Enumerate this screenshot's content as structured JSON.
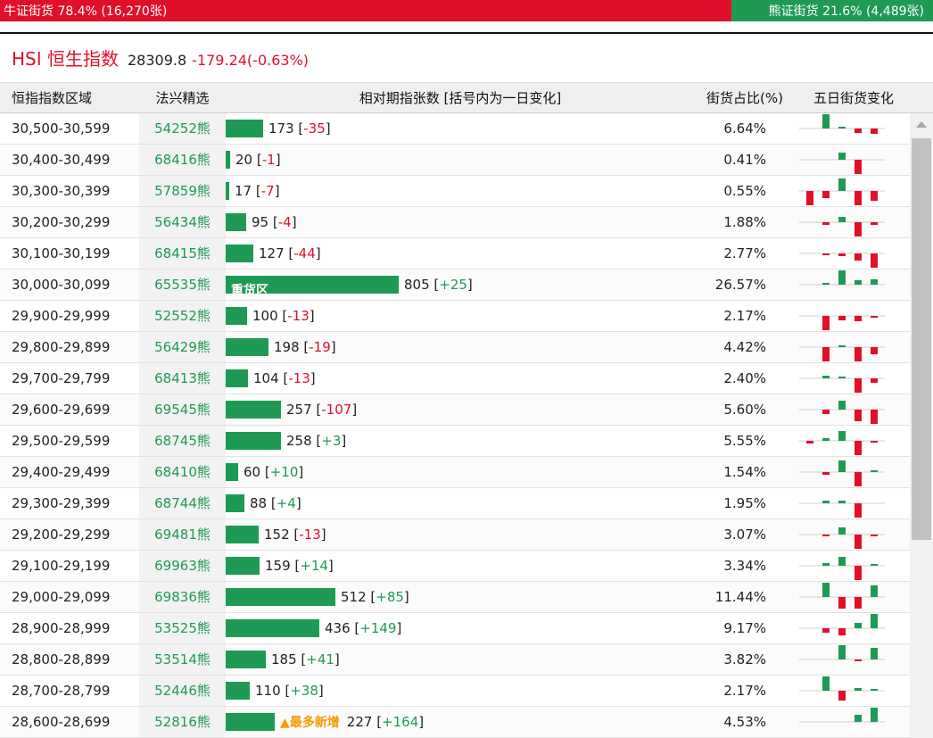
{
  "ratio": {
    "bull_label": "牛证街货 78.4% (16,270张)",
    "bull_share": 78.4,
    "bear_label": "熊证街货 21.6% (4,489张)",
    "bear_share": 21.6
  },
  "index": {
    "name": "HSI 恒生指数",
    "value": "28309.8",
    "change": "-179.24(-0.63%)"
  },
  "table": {
    "headers": {
      "range": "恒指指数区域",
      "pick": "法兴精选",
      "relative": "相对期指张数 [括号内为一日变化]",
      "share": "街货占比(%)",
      "five_day": "五日街货变化"
    },
    "max_contracts": 805,
    "rows": [
      {
        "range": "30,500-30,599",
        "pick": "54252熊",
        "contracts": 173,
        "contracts_text": "173",
        "change": "-35",
        "share": "6.64%",
        "five_day": [
          0,
          1,
          0.1,
          -0.3,
          -0.4
        ]
      },
      {
        "range": "30,400-30,499",
        "pick": "68416熊",
        "contracts": 20,
        "contracts_text": "20",
        "change": "-1",
        "share": "0.41%",
        "five_day": [
          0,
          0,
          0.5,
          -1,
          0
        ]
      },
      {
        "range": "30,300-30,399",
        "pick": "57859熊",
        "contracts": 17,
        "contracts_text": "17",
        "change": "-7",
        "share": "0.55%",
        "five_day": [
          -1,
          -0.5,
          0.9,
          -1,
          -0.7
        ]
      },
      {
        "range": "30,200-30,299",
        "pick": "56434熊",
        "contracts": 95,
        "contracts_text": "95",
        "change": "-4",
        "share": "1.88%",
        "five_day": [
          0,
          -0.2,
          0.4,
          -1,
          -0.2
        ]
      },
      {
        "range": "30,100-30,199",
        "pick": "68415熊",
        "contracts": 127,
        "contracts_text": "127",
        "change": "-44",
        "share": "2.77%",
        "five_day": [
          0,
          -0.1,
          -0.2,
          -0.5,
          -1
        ]
      },
      {
        "range": "30,000-30,099",
        "pick": "65535熊",
        "contracts": 805,
        "contracts_text": "805",
        "change": "+25",
        "share": "26.57%",
        "label": "重货区",
        "five_day": [
          0,
          0.1,
          1,
          0.3,
          0.4
        ]
      },
      {
        "range": "29,900-29,999",
        "pick": "52552熊",
        "contracts": 100,
        "contracts_text": "100",
        "change": "-13",
        "share": "2.17%",
        "five_day": [
          0,
          -1,
          -0.3,
          -0.4,
          -0.1
        ]
      },
      {
        "range": "29,800-29,899",
        "pick": "56429熊",
        "contracts": 198,
        "contracts_text": "198",
        "change": "-19",
        "share": "4.42%",
        "five_day": [
          0,
          -1,
          0.1,
          -1,
          -0.5
        ]
      },
      {
        "range": "29,700-29,799",
        "pick": "68413熊",
        "contracts": 104,
        "contracts_text": "104",
        "change": "-13",
        "share": "2.40%",
        "five_day": [
          0,
          0.2,
          0.1,
          -1,
          -0.3
        ]
      },
      {
        "range": "29,600-29,699",
        "pick": "69545熊",
        "contracts": 257,
        "contracts_text": "257",
        "change": "-107",
        "share": "5.60%",
        "five_day": [
          0,
          -0.3,
          0.6,
          -0.8,
          -1
        ]
      },
      {
        "range": "29,500-29,599",
        "pick": "68745熊",
        "contracts": 258,
        "contracts_text": "258",
        "change": "+3",
        "share": "5.55%",
        "five_day": [
          -0.2,
          0.2,
          0.7,
          -1,
          -0.1
        ]
      },
      {
        "range": "29,400-29,499",
        "pick": "68410熊",
        "contracts": 60,
        "contracts_text": "60",
        "change": "+10",
        "share": "1.54%",
        "five_day": [
          0,
          -0.2,
          0.8,
          -1,
          0.1
        ]
      },
      {
        "range": "29,300-29,399",
        "pick": "68744熊",
        "contracts": 88,
        "contracts_text": "88",
        "change": "+4",
        "share": "1.95%",
        "five_day": [
          0,
          0.2,
          0.2,
          -1,
          0
        ]
      },
      {
        "range": "29,200-29,299",
        "pick": "69481熊",
        "contracts": 152,
        "contracts_text": "152",
        "change": "-13",
        "share": "3.07%",
        "five_day": [
          0,
          -0.1,
          0.5,
          -1,
          -0.1
        ]
      },
      {
        "range": "29,100-29,199",
        "pick": "69963熊",
        "contracts": 159,
        "contracts_text": "159",
        "change": "+14",
        "share": "3.34%",
        "five_day": [
          0,
          0.2,
          0.6,
          -1,
          0.1
        ]
      },
      {
        "range": "29,000-29,099",
        "pick": "69836熊",
        "contracts": 512,
        "contracts_text": "512",
        "change": "+85",
        "share": "11.44%",
        "five_day": [
          0,
          1,
          -0.8,
          -0.8,
          0.8
        ]
      },
      {
        "range": "28,900-28,999",
        "pick": "53525熊",
        "contracts": 436,
        "contracts_text": "436",
        "change": "+149",
        "share": "9.17%",
        "five_day": [
          0,
          -0.3,
          -0.5,
          0.4,
          1
        ]
      },
      {
        "range": "28,800-28,899",
        "pick": "53514熊",
        "contracts": 185,
        "contracts_text": "185",
        "change": "+41",
        "share": "3.82%",
        "five_day": [
          0,
          0,
          1,
          -0.1,
          0.8
        ]
      },
      {
        "range": "28,700-28,799",
        "pick": "52446熊",
        "contracts": 110,
        "contracts_text": "110",
        "change": "+38",
        "share": "2.17%",
        "five_day": [
          0,
          1,
          -0.7,
          0.2,
          0.1
        ]
      },
      {
        "range": "28,600-28,699",
        "pick": "52816熊",
        "contracts": 227,
        "contracts_text": "227",
        "change": "+164",
        "share": "4.53%",
        "tag": "▲最多新增",
        "five_day": [
          0,
          0,
          0,
          0.5,
          1
        ]
      }
    ]
  },
  "colors": {
    "bull_red": "#e0102b",
    "bear_green": "#1f9a55",
    "tag_orange": "#f59c00"
  }
}
